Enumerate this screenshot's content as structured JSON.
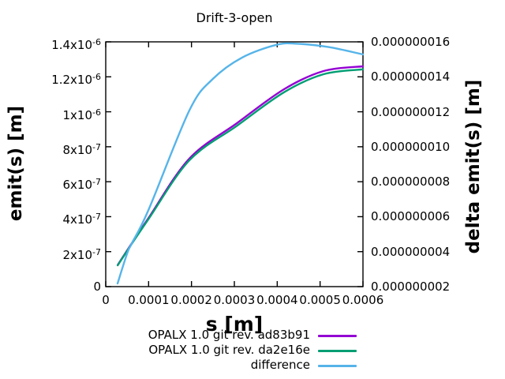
{
  "chart_data": {
    "type": "line",
    "title": "Drift-3-open",
    "xlabel": "s [m]",
    "ylabel_left": "emit(s) [m]",
    "ylabel_right": "delta emit(s) [m]",
    "xlim": [
      0,
      0.0006
    ],
    "ylim_left": [
      0,
      1.4e-06
    ],
    "ylim_right": [
      2e-09,
      1.6e-08
    ],
    "grid": false,
    "legend_position": "below",
    "frame_color": "#000000",
    "background_color": "#ffffff",
    "x_ticks": [
      {
        "v": 0,
        "label": "0"
      },
      {
        "v": 0.0001,
        "label": "0.0001"
      },
      {
        "v": 0.0002,
        "label": "0.0002"
      },
      {
        "v": 0.0003,
        "label": "0.0003"
      },
      {
        "v": 0.0004,
        "label": "0.0004"
      },
      {
        "v": 0.0005,
        "label": "0.0005"
      },
      {
        "v": 0.0006,
        "label": "0.0006"
      }
    ],
    "y_ticks_left": [
      {
        "v": 1.4e-06,
        "mantissa": "1.4x10",
        "exp": "-6"
      },
      {
        "v": 1.2e-06,
        "mantissa": "1.2x10",
        "exp": "-6"
      },
      {
        "v": 1e-06,
        "mantissa": "1x10",
        "exp": "-6"
      },
      {
        "v": 8e-07,
        "mantissa": "8x10",
        "exp": "-7"
      },
      {
        "v": 6e-07,
        "mantissa": "6x10",
        "exp": "-7"
      },
      {
        "v": 4e-07,
        "mantissa": "4x10",
        "exp": "-7"
      },
      {
        "v": 2e-07,
        "mantissa": "2x10",
        "exp": "-7"
      },
      {
        "v": 0,
        "mantissa": "0",
        "exp": ""
      }
    ],
    "y_ticks_right": [
      {
        "v": 1.6e-08,
        "label": "0.000000016"
      },
      {
        "v": 1.4e-08,
        "label": "0.000000014"
      },
      {
        "v": 1.2e-08,
        "label": "0.000000012"
      },
      {
        "v": 1e-08,
        "label": "0.000000010"
      },
      {
        "v": 8e-09,
        "label": "0.000000008"
      },
      {
        "v": 6e-09,
        "label": "0.000000006"
      },
      {
        "v": 4e-09,
        "label": "0.000000004"
      },
      {
        "v": 2e-09,
        "label": "0.000000002"
      }
    ],
    "series": [
      {
        "name": "OPALX 1.0 git rev. ad83b91",
        "color": "#9400d3",
        "axis": "left",
        "x": [
          2.8e-05,
          6e-05,
          0.0001,
          0.000195,
          0.000306,
          0.000416,
          0.000508,
          0.0006
        ],
        "y": [
          1.24e-07,
          2.45e-07,
          3.93e-07,
          7.32e-07,
          9.35e-07,
          1.129e-06,
          1.233e-06,
          1.26e-06
        ]
      },
      {
        "name": "OPALX 1.0 git rev. da2e16e",
        "color": "#009e73",
        "axis": "left",
        "x": [
          2.8e-05,
          6e-05,
          0.0001,
          0.000195,
          0.000306,
          0.000416,
          0.000508,
          0.0006
        ],
        "y": [
          1.22e-07,
          2.42e-07,
          3.87e-07,
          7.22e-07,
          9.2e-07,
          1.112e-06,
          1.215e-06,
          1.243e-06
        ]
      },
      {
        "name": "difference",
        "color": "#56b4e9",
        "axis": "right",
        "x": [
          2.76e-05,
          5e-05,
          6.1e-05,
          0.0001,
          0.000195,
          0.00025,
          0.000318,
          0.000398,
          0.000447,
          0.00052,
          0.0006
        ],
        "y": [
          2.18e-09,
          3.9e-09,
          4.48e-09,
          6.4e-09,
          1.207e-08,
          1.388e-08,
          1.51e-08,
          1.583e-08,
          1.589e-08,
          1.57e-08,
          1.528e-08
        ]
      }
    ]
  }
}
